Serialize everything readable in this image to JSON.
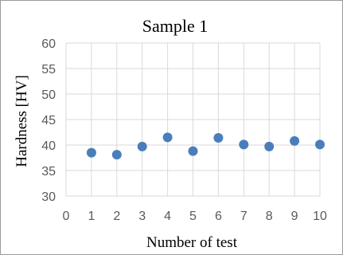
{
  "chart_data": {
    "type": "scatter",
    "title": "Sample 1",
    "xlabel": "Number of test",
    "ylabel": "Hardness [HV]",
    "xlim": [
      0,
      10
    ],
    "ylim": [
      30,
      60
    ],
    "x_ticks": [
      "0",
      "1",
      "2",
      "3",
      "4",
      "5",
      "6",
      "7",
      "8",
      "9",
      "10"
    ],
    "y_ticks": [
      "30",
      "35",
      "40",
      "45",
      "50",
      "55",
      "60"
    ],
    "grid": true,
    "legend": "none",
    "series": [
      {
        "color": "#4a7ebb",
        "x": [
          1,
          2,
          3,
          4,
          5,
          6,
          7,
          8,
          9,
          10
        ],
        "y": [
          38.5,
          38.1,
          39.7,
          41.5,
          38.8,
          41.4,
          40.1,
          39.7,
          40.8,
          40.1
        ]
      }
    ]
  }
}
